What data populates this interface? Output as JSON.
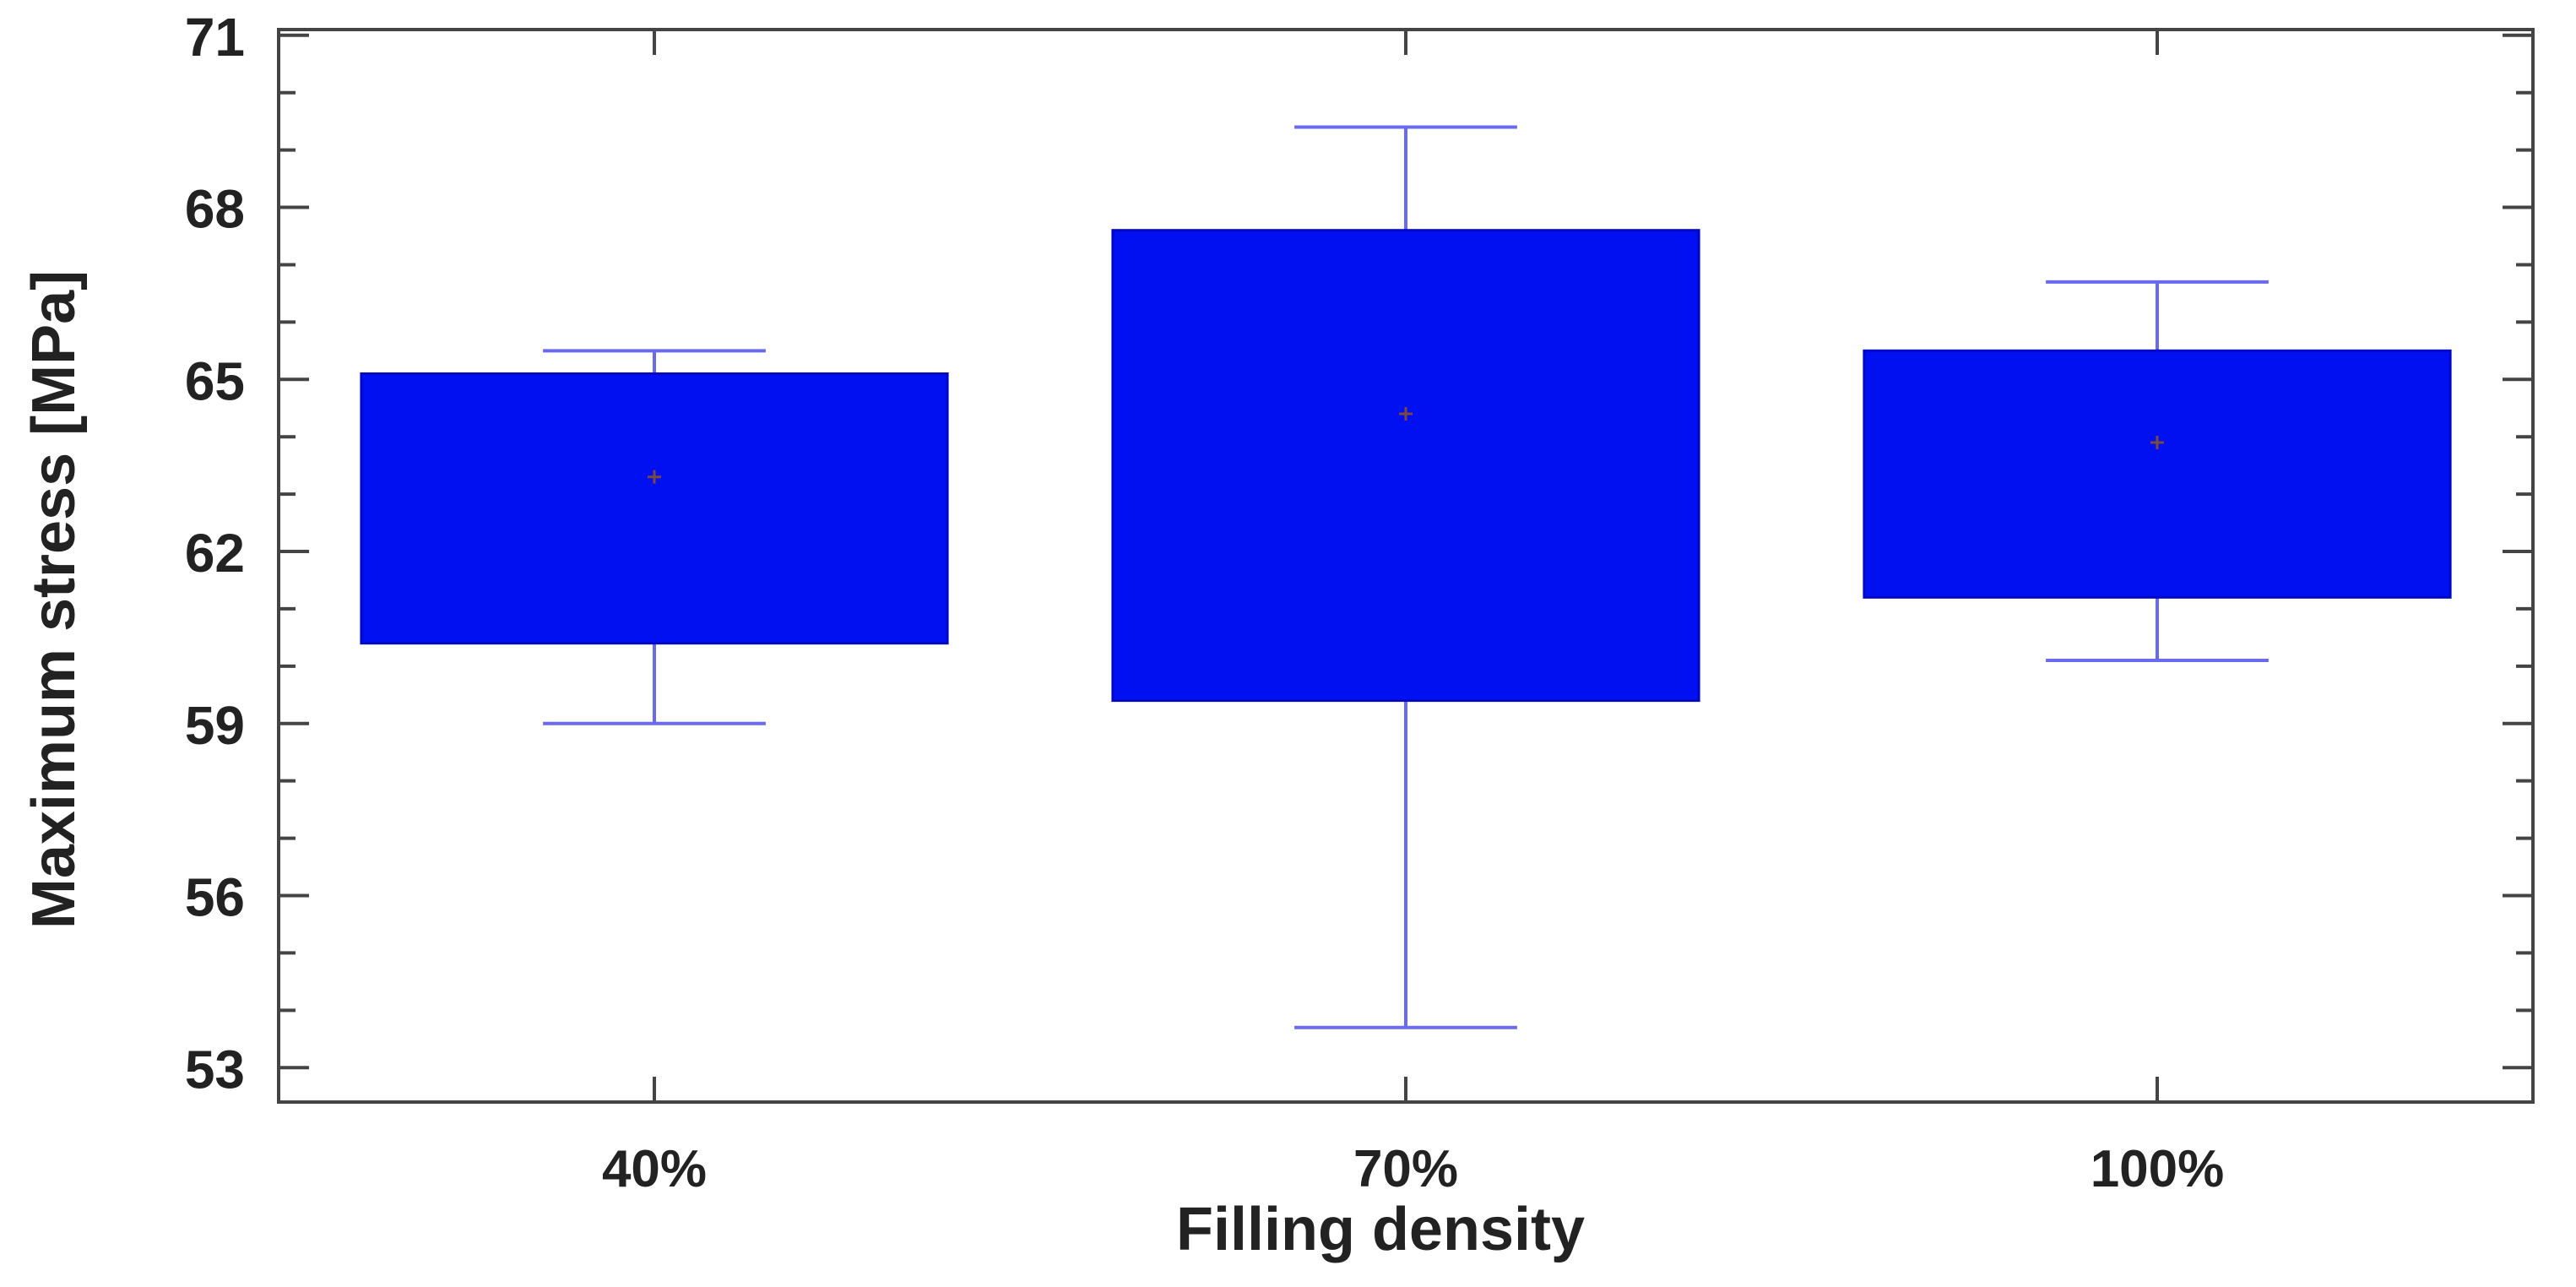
{
  "chart_data": {
    "type": "box",
    "title": "",
    "xlabel": "Filling density",
    "ylabel": "Maximum stress  [MPa]",
    "ylim": [
      52.4,
      71.1
    ],
    "yticks": [
      53,
      56,
      59,
      62,
      65,
      68,
      71
    ],
    "ytick_labels": [
      "53",
      "56",
      "59",
      "62",
      "65",
      "68",
      "71"
    ],
    "categories": [
      "40%",
      "70%",
      "100%"
    ],
    "boxes": [
      {
        "category": "40%",
        "whisker_low": 59.0,
        "q1": 60.4,
        "mean": 63.3,
        "q3": 65.1,
        "whisker_high": 65.5
      },
      {
        "category": "70%",
        "whisker_low": 53.7,
        "q1": 59.4,
        "mean": 64.4,
        "q3": 67.6,
        "whisker_high": 69.4
      },
      {
        "category": "100%",
        "whisker_low": 60.1,
        "q1": 61.2,
        "mean": 63.9,
        "q3": 65.5,
        "whisker_high": 66.7
      }
    ],
    "grid": false,
    "colors": {
      "box_fill": "#0010f0",
      "whisker": "#6a6af0",
      "mean_marker": "#7a4a3a",
      "frame": "#444444",
      "text": "#222222"
    }
  }
}
